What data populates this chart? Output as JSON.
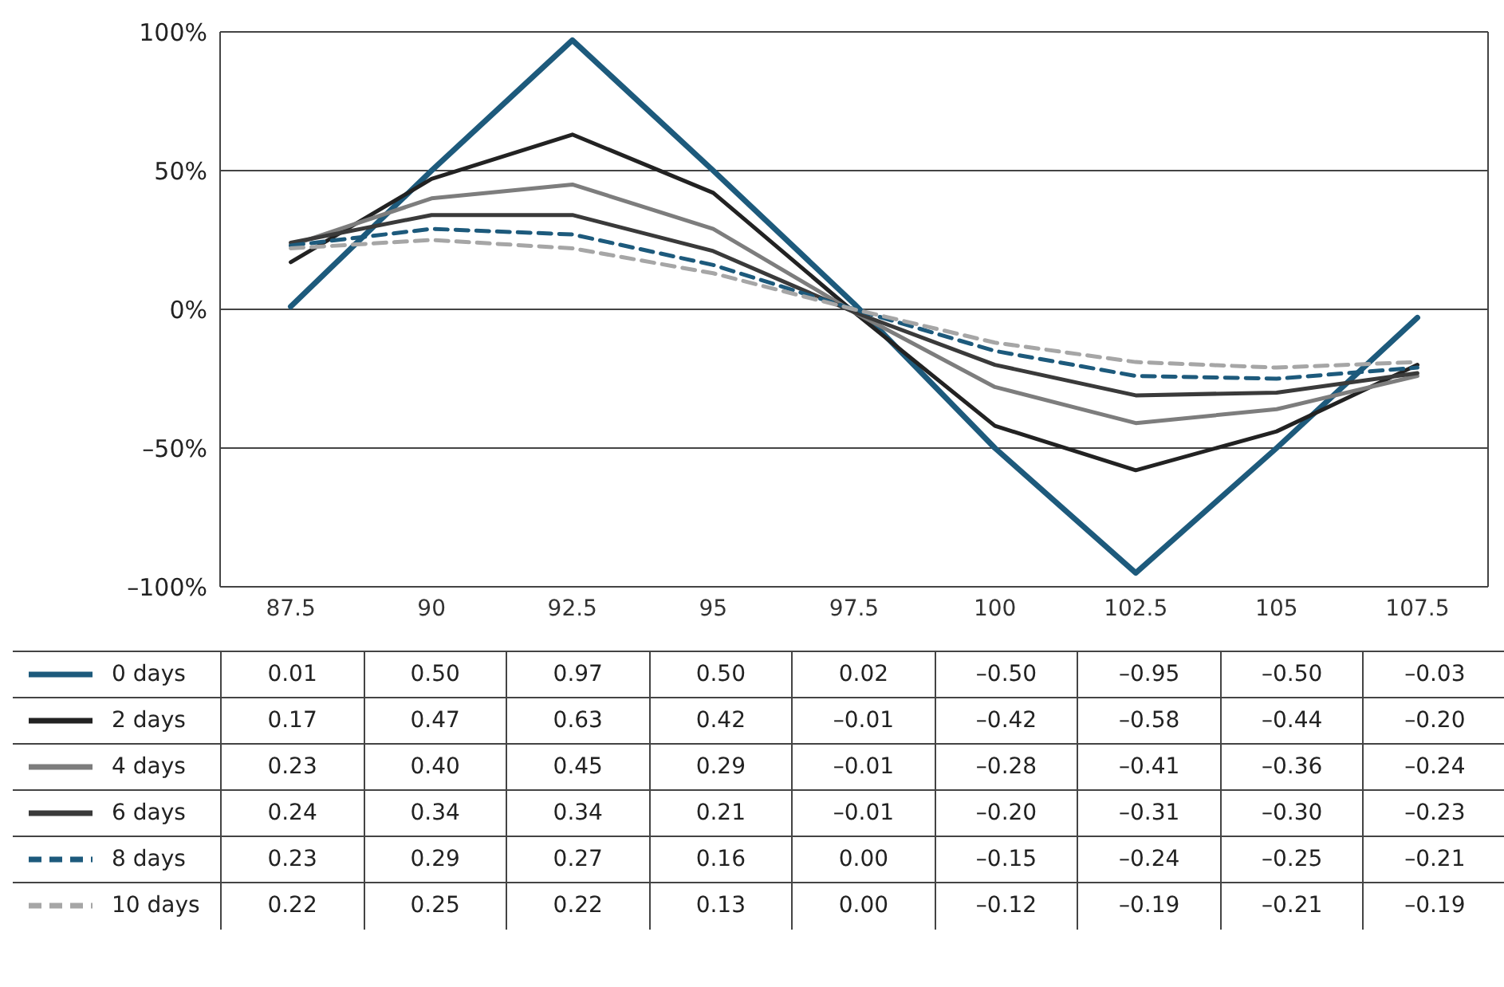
{
  "chart_data": {
    "type": "line",
    "categories": [
      "87.5",
      "90",
      "92.5",
      "95",
      "97.5",
      "100",
      "102.5",
      "105",
      "107.5"
    ],
    "series": [
      {
        "name": "0 days",
        "color": "#1d5a7c",
        "values": [
          0.01,
          0.5,
          0.97,
          0.5,
          0.02,
          -0.5,
          -0.95,
          -0.5,
          -0.03
        ],
        "value_labels": [
          "0.01",
          "0.50",
          "0.97",
          "0.50",
          "0.02",
          "–0.50",
          "–0.95",
          "–0.50",
          "–0.03"
        ]
      },
      {
        "name": "2 days",
        "color": "#222222",
        "values": [
          0.17,
          0.47,
          0.63,
          0.42,
          -0.01,
          -0.42,
          -0.58,
          -0.44,
          -0.2
        ],
        "value_labels": [
          "0.17",
          "0.47",
          "0.63",
          "0.42",
          "–0.01",
          "–0.42",
          "–0.58",
          "–0.44",
          "–0.20"
        ]
      },
      {
        "name": "4 days",
        "color": "#7d7d7d",
        "values": [
          0.23,
          0.4,
          0.45,
          0.29,
          -0.01,
          -0.28,
          -0.41,
          -0.36,
          -0.24
        ],
        "value_labels": [
          "0.23",
          "0.40",
          "0.45",
          "0.29",
          "–0.01",
          "–0.28",
          "–0.41",
          "–0.36",
          "–0.24"
        ]
      },
      {
        "name": "6 days",
        "color": "#3a3a3a",
        "values": [
          0.24,
          0.34,
          0.34,
          0.21,
          -0.01,
          -0.2,
          -0.31,
          -0.3,
          -0.23
        ],
        "value_labels": [
          "0.24",
          "0.34",
          "0.34",
          "0.21",
          "–0.01",
          "–0.20",
          "–0.31",
          "–0.30",
          "–0.23"
        ]
      },
      {
        "name": "8 days",
        "color": "#1d5a7c",
        "line_style": "dashed",
        "values": [
          0.23,
          0.29,
          0.27,
          0.16,
          0.0,
          -0.15,
          -0.24,
          -0.25,
          -0.21
        ],
        "value_labels": [
          "0.23",
          "0.29",
          "0.27",
          "0.16",
          "0.00",
          "–0.15",
          "–0.24",
          "–0.25",
          "–0.21"
        ]
      },
      {
        "name": "10 days",
        "color": "#a6a6a6",
        "line_style": "dashed",
        "values": [
          0.22,
          0.25,
          0.22,
          0.13,
          0.0,
          -0.12,
          -0.19,
          -0.21,
          -0.19
        ],
        "value_labels": [
          "0.22",
          "0.25",
          "0.22",
          "0.13",
          "0.00",
          "–0.12",
          "–0.19",
          "–0.21",
          "–0.19"
        ]
      }
    ],
    "ylim": [
      -1,
      1
    ],
    "yticks": [
      {
        "value": 1,
        "label": "100%"
      },
      {
        "value": 0.5,
        "label": "50%"
      },
      {
        "value": 0,
        "label": "0%"
      },
      {
        "value": -0.5,
        "label": "–50%"
      },
      {
        "value": -1,
        "label": "–100%"
      }
    ],
    "grid": "y",
    "legend": "bottom left",
    "marker": "none",
    "line_style": "solid"
  }
}
